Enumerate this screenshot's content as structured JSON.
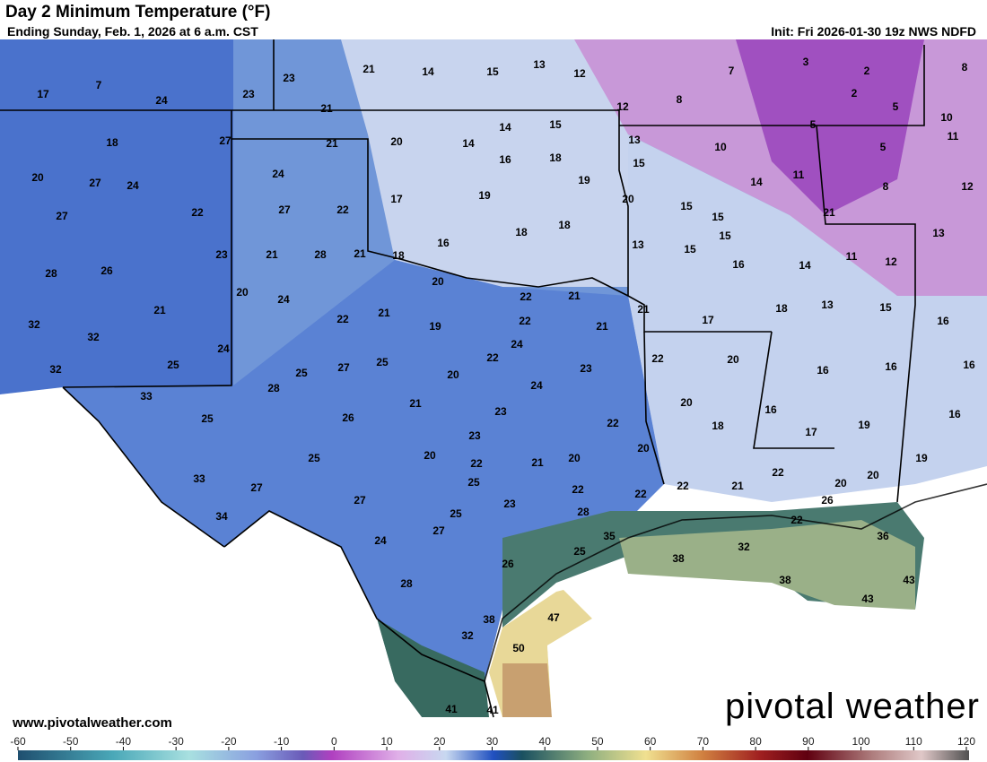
{
  "header": {
    "title": "Day 2 Minimum Temperature (°F)",
    "subtitle": "Ending Sunday, Feb. 1, 2026 at 6 a.m. CST",
    "init": "Init: Fri 2026-01-30 19z NWS NDFD"
  },
  "footer": {
    "website": "www.pivotalweather.com",
    "logo": "pivotal weather"
  },
  "temperatures": [
    17,
    7,
    24,
    23,
    23,
    21,
    14,
    15,
    13,
    12,
    7,
    3,
    2,
    8,
    8,
    2,
    5,
    10,
    12,
    21,
    5,
    18,
    27,
    21,
    20,
    14,
    14,
    15,
    13,
    11,
    16,
    18,
    15,
    10,
    5,
    20,
    27,
    24,
    24,
    19,
    11,
    14,
    8,
    12,
    17,
    19,
    20,
    15,
    15,
    21,
    27,
    22,
    27,
    22,
    18,
    18,
    13,
    16,
    13,
    15,
    15,
    23,
    21,
    28,
    21,
    18,
    11,
    12,
    16,
    14,
    28,
    26,
    20,
    20,
    24,
    22,
    21,
    13,
    15,
    32,
    21,
    21,
    22,
    22,
    21,
    21,
    17,
    18,
    16,
    32,
    24,
    19,
    24,
    32,
    25,
    25,
    27,
    25,
    22,
    22,
    20,
    16,
    16,
    16,
    23,
    20,
    28,
    33,
    24,
    21,
    20,
    16,
    23,
    26,
    22,
    25,
    18,
    19,
    16,
    17,
    23,
    20,
    20,
    25,
    22,
    21,
    20,
    19,
    33,
    27,
    25,
    22,
    21,
    22,
    20,
    20,
    22,
    22,
    27,
    23,
    26,
    34,
    25,
    28,
    27,
    24,
    22,
    35,
    36,
    25,
    32,
    38,
    26,
    28,
    38,
    43,
    43,
    47,
    38,
    32,
    50,
    41,
    41
  ],
  "colorbar": {
    "lim": [
      -60,
      120
    ],
    "ticks": [
      -60,
      -50,
      -40,
      -30,
      -20,
      -10,
      0,
      10,
      20,
      30,
      40,
      50,
      60,
      70,
      80,
      90,
      100,
      110,
      120
    ]
  }
}
